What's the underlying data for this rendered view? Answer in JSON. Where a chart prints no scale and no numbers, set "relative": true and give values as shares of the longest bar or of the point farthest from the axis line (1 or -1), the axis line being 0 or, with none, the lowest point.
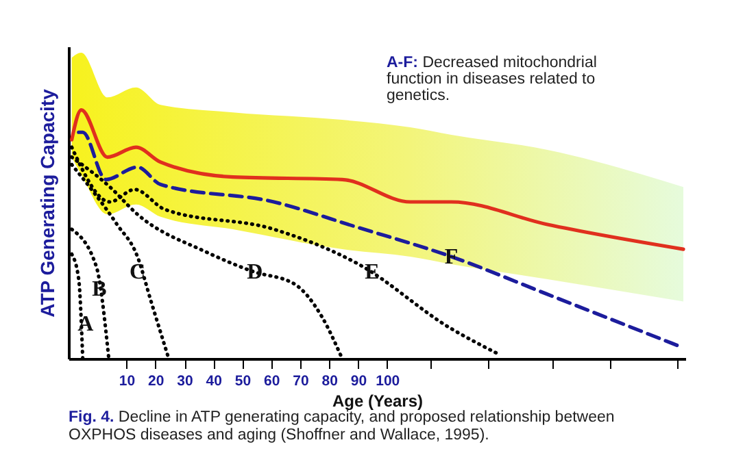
{
  "chart_data": {
    "type": "line",
    "relative": true,
    "ylabel": "ATP Generating Capacity",
    "xlabel": "Age (Years)",
    "xlim": [
      -10,
      203
    ],
    "xticks": [
      10,
      20,
      30,
      40,
      50,
      60,
      70,
      80,
      90,
      100,
      {
        "value": 115,
        "label": null
      },
      {
        "value": 135,
        "label": null
      },
      {
        "value": 157,
        "label": null
      },
      {
        "value": 177,
        "label": null
      },
      {
        "value": 200,
        "label": null
      }
    ],
    "grid": false,
    "marker": "none",
    "series": [
      {
        "color": "#e0301e",
        "line_style": "solid",
        "x": [
          -8.9,
          -5.6,
          3.4,
          13.3,
          21.8,
          46.8,
          84.5,
          108,
          122.2,
          155.1,
          202.3
        ],
        "values": [
          0.88,
          1,
          0.81,
          0.85,
          0.79,
          0.73,
          0.72,
          0.63,
          0.63,
          0.54,
          0.44
        ],
        "upper": [
          1.21,
          1.23,
          1.05,
          1.09,
          1.02,
          0.99,
          0.96,
          0.93,
          0.9,
          0.84,
          0.69
        ],
        "lower": [
          0.81,
          0.74,
          0.58,
          0.62,
          0.57,
          0.52,
          0.44,
          0.41,
          0.38,
          0.32,
          0.23
        ]
      },
      {
        "color": "#1c1c9c",
        "line_style": "dashed",
        "x": [
          -6.5,
          -5.1,
          2.9,
          13.8,
          21.8,
          60.9,
          89.2,
          122.2,
          155.1,
          200.9
        ],
        "values": [
          0.91,
          0.91,
          0.72,
          0.77,
          0.7,
          0.63,
          0.53,
          0.41,
          0.26,
          0.05
        ]
      },
      {
        "color": "#000000",
        "line_style": "dotted",
        "x": [
          -8.9,
          -6.5,
          -5.1
        ],
        "values": [
          0.42,
          0.32,
          0
        ]
      },
      {
        "color": "#000000",
        "line_style": "dotted",
        "x": [
          -8.9,
          -0.4,
          3.9
        ],
        "values": [
          0.52,
          0.37,
          0
        ]
      },
      {
        "color": "#000000",
        "line_style": "dotted",
        "x": [
          -8.9,
          6.7,
          13.8,
          18.5,
          24.6
        ],
        "values": [
          0.78,
          0.54,
          0.41,
          0.23,
          0
        ]
      },
      {
        "color": "#000000",
        "line_style": "dotted",
        "x": [
          -8.9,
          4.3,
          13.8,
          37.3,
          53.8,
          68.0,
          77.4,
          84.5
        ],
        "values": [
          0.81,
          0.69,
          0.58,
          0.43,
          0.35,
          0.3,
          0.17,
          0
        ]
      },
      {
        "color": "#000000",
        "line_style": "dotted",
        "x": [
          -8.9,
          4.3,
          12.8,
          23.2,
          60.9,
          90.1,
          122.2,
          138.2
        ],
        "values": [
          0.85,
          0.63,
          0.68,
          0.6,
          0.52,
          0.38,
          0.12,
          0.02
        ]
      }
    ],
    "annotations": [
      "A-F: Decreased mitochondrial function in diseases related to genetics.",
      "Fig. 4.  Decline in ATP generating capacity, and proposed relationship between OXPHOS diseases and aging (Shoffner and Wallace, 1995).",
      {
        "text": "A",
        "x": -4.1,
        "y": 0.14
      },
      {
        "text": "B",
        "x": 0.6,
        "y": 0.28
      },
      {
        "text": "C",
        "x": 13.8,
        "y": 0.35
      },
      {
        "text": "D",
        "x": 54.3,
        "y": 0.35
      },
      {
        "text": "E",
        "x": 94.8,
        "y": 0.35
      },
      {
        "text": "F",
        "x": 122.2,
        "y": 0.41
      }
    ]
  }
}
